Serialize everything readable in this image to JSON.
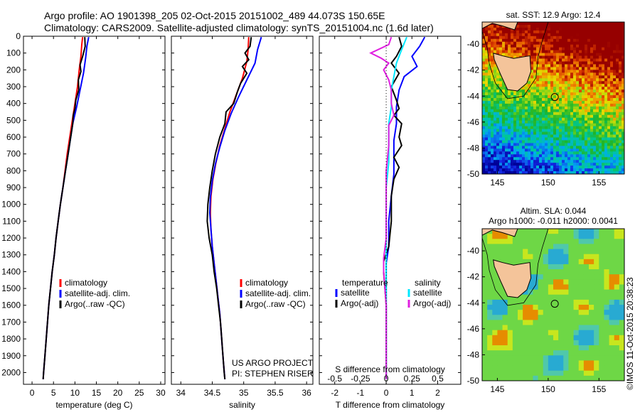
{
  "header": {
    "line1": "Argo profile: AO 1901398_205 02-Oct-2015 20151002_489 44.073S 150.65E",
    "line2": "Climatology: CARS2009. Satellite-adjusted climatology: synTS_20151004.nc (1.6d later)"
  },
  "colors": {
    "climatology": "#ff0000",
    "satellite": "#0000ff",
    "argo": "#000000",
    "sat_salinity": "#00e8ff",
    "argo_salinity": "#e020e0"
  },
  "chart_data": [
    {
      "id": "temperature",
      "type": "line",
      "xlabel": "temperature (deg C)",
      "ylabel": "",
      "xlim": [
        -2,
        31
      ],
      "ylim": [
        2070,
        0
      ],
      "xticks": [
        0,
        5,
        10,
        15,
        20,
        25,
        30
      ],
      "yticks": [
        0,
        100,
        200,
        300,
        400,
        500,
        600,
        700,
        800,
        900,
        1000,
        1100,
        1200,
        1300,
        1400,
        1500,
        1600,
        1700,
        1800,
        1900,
        2000
      ],
      "legend": [
        "climatology",
        "satellite-adj. clim.",
        "Argo(..raw -QC)"
      ],
      "series": [
        {
          "name": "climatology",
          "color_key": "climatology",
          "points": [
            [
              11.8,
              5
            ],
            [
              11.6,
              50
            ],
            [
              11.4,
              120
            ],
            [
              11.0,
              200
            ],
            [
              10.6,
              300
            ],
            [
              10.0,
              400
            ],
            [
              9.4,
              500
            ],
            [
              8.8,
              600
            ],
            [
              8.2,
              700
            ],
            [
              7.7,
              800
            ],
            [
              7.2,
              900
            ],
            [
              6.6,
              1000
            ],
            [
              6.1,
              1100
            ],
            [
              5.6,
              1200
            ],
            [
              5.2,
              1300
            ],
            [
              4.7,
              1400
            ],
            [
              4.3,
              1500
            ],
            [
              3.9,
              1600
            ],
            [
              3.6,
              1700
            ],
            [
              3.3,
              1800
            ],
            [
              3.0,
              1900
            ],
            [
              2.7,
              2000
            ],
            [
              2.6,
              2040
            ]
          ]
        },
        {
          "name": "satellite-adj. clim.",
          "color_key": "satellite",
          "points": [
            [
              13.2,
              5
            ],
            [
              12.8,
              60
            ],
            [
              12.5,
              130
            ],
            [
              12.0,
              220
            ],
            [
              11.2,
              320
            ],
            [
              10.4,
              420
            ],
            [
              9.5,
              520
            ],
            [
              8.9,
              620
            ],
            [
              8.3,
              720
            ],
            [
              7.8,
              800
            ],
            [
              7.2,
              900
            ],
            [
              6.6,
              1000
            ],
            [
              6.1,
              1100
            ],
            [
              5.6,
              1200
            ],
            [
              5.2,
              1300
            ],
            [
              4.7,
              1400
            ],
            [
              4.3,
              1500
            ],
            [
              3.9,
              1600
            ],
            [
              3.6,
              1700
            ],
            [
              3.3,
              1800
            ],
            [
              3.0,
              1900
            ],
            [
              2.7,
              2000
            ],
            [
              2.6,
              2040
            ]
          ]
        },
        {
          "name": "Argo(..raw -QC)",
          "color_key": "argo",
          "points": [
            [
              12.3,
              5
            ],
            [
              12.4,
              60
            ],
            [
              11.8,
              120
            ],
            [
              11.2,
              170
            ],
            [
              11.4,
              210
            ],
            [
              10.8,
              260
            ],
            [
              10.9,
              320
            ],
            [
              10.2,
              380
            ],
            [
              10.0,
              430
            ],
            [
              9.6,
              470
            ],
            [
              9.5,
              520
            ],
            [
              8.9,
              620
            ],
            [
              8.3,
              720
            ],
            [
              7.8,
              800
            ],
            [
              7.2,
              900
            ],
            [
              6.6,
              1000
            ],
            [
              6.1,
              1100
            ],
            [
              5.6,
              1200
            ],
            [
              5.2,
              1300
            ],
            [
              4.7,
              1400
            ],
            [
              4.3,
              1500
            ],
            [
              3.9,
              1600
            ],
            [
              3.6,
              1700
            ],
            [
              3.3,
              1800
            ],
            [
              3.0,
              1900
            ],
            [
              2.7,
              2000
            ],
            [
              2.6,
              2040
            ]
          ]
        }
      ]
    },
    {
      "id": "salinity",
      "type": "line",
      "xlabel": "salinity",
      "xlim": [
        33.85,
        36.1
      ],
      "ylim": [
        2070,
        0
      ],
      "xticks": [
        34,
        34.5,
        35,
        35.5,
        36
      ],
      "legend": [
        "climatology",
        "satellite-adj. clim.",
        "Argo(..raw -QC)"
      ],
      "annotation_line1": "US ARGO PROJECT",
      "annotation_line2": "PI: STEPHEN RISER",
      "series": [
        {
          "name": "climatology",
          "color_key": "climatology",
          "points": [
            [
              35.08,
              5
            ],
            [
              35.07,
              80
            ],
            [
              35.05,
              150
            ],
            [
              34.98,
              250
            ],
            [
              34.88,
              350
            ],
            [
              34.78,
              450
            ],
            [
              34.7,
              550
            ],
            [
              34.62,
              650
            ],
            [
              34.56,
              750
            ],
            [
              34.51,
              850
            ],
            [
              34.48,
              950
            ],
            [
              34.47,
              1050
            ],
            [
              34.48,
              1150
            ],
            [
              34.5,
              1250
            ],
            [
              34.53,
              1350
            ],
            [
              34.56,
              1450
            ],
            [
              34.59,
              1550
            ],
            [
              34.62,
              1650
            ],
            [
              34.64,
              1750
            ],
            [
              34.66,
              1850
            ],
            [
              34.68,
              1950
            ],
            [
              34.7,
              2040
            ]
          ]
        },
        {
          "name": "satellite-adj. clim.",
          "color_key": "satellite",
          "points": [
            [
              35.28,
              5
            ],
            [
              35.22,
              80
            ],
            [
              35.18,
              160
            ],
            [
              35.05,
              260
            ],
            [
              34.92,
              360
            ],
            [
              34.8,
              460
            ],
            [
              34.7,
              560
            ],
            [
              34.62,
              660
            ],
            [
              34.55,
              760
            ],
            [
              34.5,
              860
            ],
            [
              34.47,
              960
            ],
            [
              34.46,
              1050
            ],
            [
              34.48,
              1150
            ],
            [
              34.5,
              1250
            ],
            [
              34.53,
              1350
            ],
            [
              34.56,
              1450
            ],
            [
              34.59,
              1550
            ],
            [
              34.62,
              1650
            ],
            [
              34.64,
              1750
            ],
            [
              34.66,
              1850
            ],
            [
              34.68,
              1950
            ],
            [
              34.7,
              2040
            ]
          ]
        },
        {
          "name": "Argo(..raw -QC)",
          "color_key": "argo",
          "points": [
            [
              35.12,
              5
            ],
            [
              35.1,
              60
            ],
            [
              35.02,
              100
            ],
            [
              35.08,
              140
            ],
            [
              34.98,
              180
            ],
            [
              35.05,
              220
            ],
            [
              34.95,
              280
            ],
            [
              34.9,
              330
            ],
            [
              34.84,
              400
            ],
            [
              34.72,
              450
            ],
            [
              34.7,
              520
            ],
            [
              34.62,
              600
            ],
            [
              34.55,
              700
            ],
            [
              34.5,
              800
            ],
            [
              34.46,
              900
            ],
            [
              34.43,
              1000
            ],
            [
              34.42,
              1100
            ],
            [
              34.45,
              1200
            ],
            [
              34.5,
              1300
            ],
            [
              34.53,
              1400
            ],
            [
              34.57,
              1500
            ],
            [
              34.6,
              1600
            ],
            [
              34.63,
              1700
            ],
            [
              34.65,
              1800
            ],
            [
              34.67,
              1900
            ],
            [
              34.69,
              2000
            ],
            [
              34.7,
              2040
            ]
          ]
        }
      ]
    },
    {
      "id": "difference",
      "type": "line",
      "xlabel": "T difference from climatology",
      "xlim": [
        -2.6,
        2.9
      ],
      "ylim": [
        2070,
        0
      ],
      "xticks": [
        -2,
        -1,
        0,
        1,
        2
      ],
      "top_label": "S difference from climatology",
      "top_ticks": [
        "-0.5",
        "-0.25",
        "0",
        "0.25",
        "0.5"
      ],
      "top_tick_T": [
        -2,
        -1,
        0,
        1,
        2
      ],
      "legend_temperature_title": "temperature",
      "legend_salinity_title": "salinity",
      "legend_temperature": [
        "satellite",
        "Argo(-adj)"
      ],
      "legend_salinity": [
        "satellite",
        "Argo(-adj)"
      ],
      "series": [
        {
          "name": "temperature satellite",
          "color_key": "satellite",
          "points": [
            [
              1.5,
              5
            ],
            [
              1.3,
              60
            ],
            [
              1.0,
              120
            ],
            [
              1.2,
              180
            ],
            [
              0.7,
              240
            ],
            [
              0.5,
              320
            ],
            [
              0.4,
              420
            ],
            [
              0.4,
              520
            ],
            [
              0.3,
              620
            ],
            [
              0.3,
              720
            ],
            [
              0.3,
              820
            ],
            [
              0.2,
              950
            ],
            [
              0.1,
              1100
            ],
            [
              0.1,
              1250
            ],
            [
              0.0,
              1350
            ],
            [
              0.0,
              1500
            ],
            [
              0.0,
              1800
            ],
            [
              0.0,
              2040
            ]
          ]
        },
        {
          "name": "temperature Argo(-adj)",
          "color_key": "argo",
          "points": [
            [
              0.5,
              5
            ],
            [
              0.6,
              60
            ],
            [
              0.4,
              120
            ],
            [
              0.2,
              160
            ],
            [
              0.5,
              220
            ],
            [
              0.2,
              300
            ],
            [
              0.4,
              380
            ],
            [
              0.5,
              430
            ],
            [
              0.3,
              470
            ],
            [
              0.6,
              520
            ],
            [
              0.5,
              600
            ],
            [
              0.6,
              650
            ],
            [
              0.3,
              720
            ],
            [
              0.5,
              780
            ],
            [
              0.3,
              850
            ],
            [
              0.2,
              950
            ],
            [
              0.2,
              1100
            ],
            [
              0.1,
              1250
            ],
            [
              -0.1,
              1340
            ],
            [
              -0.1,
              1400
            ],
            [
              0.0,
              1600
            ],
            [
              0.0,
              1800
            ],
            [
              0.0,
              2040
            ]
          ]
        },
        {
          "name": "salinity satellite",
          "color_key": "sat_salinity",
          "points": [
            [
              0.8,
              5
            ],
            [
              0.6,
              80
            ],
            [
              0.4,
              160
            ],
            [
              0.3,
              240
            ],
            [
              0.2,
              320
            ],
            [
              0.2,
              420
            ],
            [
              0.1,
              520
            ],
            [
              0.1,
              620
            ],
            [
              0.1,
              750
            ],
            [
              0.0,
              900
            ],
            [
              0.0,
              1100
            ],
            [
              0.0,
              1300
            ],
            [
              0.0,
              1500
            ],
            [
              0.0,
              1800
            ],
            [
              0.0,
              2040
            ]
          ]
        },
        {
          "name": "salinity Argo(-adj)",
          "color_key": "argo_salinity",
          "points": [
            [
              0.2,
              5
            ],
            [
              0.1,
              50
            ],
            [
              -0.6,
              100
            ],
            [
              -0.2,
              130
            ],
            [
              0.1,
              160
            ],
            [
              -0.1,
              200
            ],
            [
              0.1,
              260
            ],
            [
              0.2,
              320
            ],
            [
              0.2,
              400
            ],
            [
              0.3,
              470
            ],
            [
              0.1,
              530
            ],
            [
              0.1,
              650
            ],
            [
              0.0,
              800
            ],
            [
              0.0,
              1000
            ],
            [
              0.0,
              1200
            ],
            [
              -0.1,
              1320
            ],
            [
              -0.1,
              1400
            ],
            [
              0.0,
              1600
            ],
            [
              0.0,
              1800
            ],
            [
              0.0,
              2040
            ]
          ]
        }
      ]
    },
    {
      "id": "sst-map",
      "type": "heatmap",
      "title": "sat. SST: 12.9 Argo: 12.4",
      "xlim": [
        143.5,
        157.5
      ],
      "ylim": [
        -50,
        -38.3
      ],
      "xticks": [
        145,
        150,
        155
      ],
      "yticks": [
        -40,
        -42,
        -44,
        -46,
        -48,
        -50
      ],
      "float_position": [
        150.65,
        -44.073
      ]
    },
    {
      "id": "sla-map",
      "type": "heatmap",
      "title_line1": "Altim. SLA: 0.044",
      "title_line2": "Argo h1000: -0.011 h2000: 0.0041",
      "xlim": [
        143.5,
        157.5
      ],
      "ylim": [
        -50,
        -38.3
      ],
      "xticks": [
        145,
        150,
        155
      ],
      "yticks": [
        -40,
        -42,
        -44,
        -46,
        -48,
        -50
      ],
      "float_position": [
        150.65,
        -44.073
      ]
    }
  ],
  "credit": "©IMOS 11-Oct-2015 20:38:23"
}
